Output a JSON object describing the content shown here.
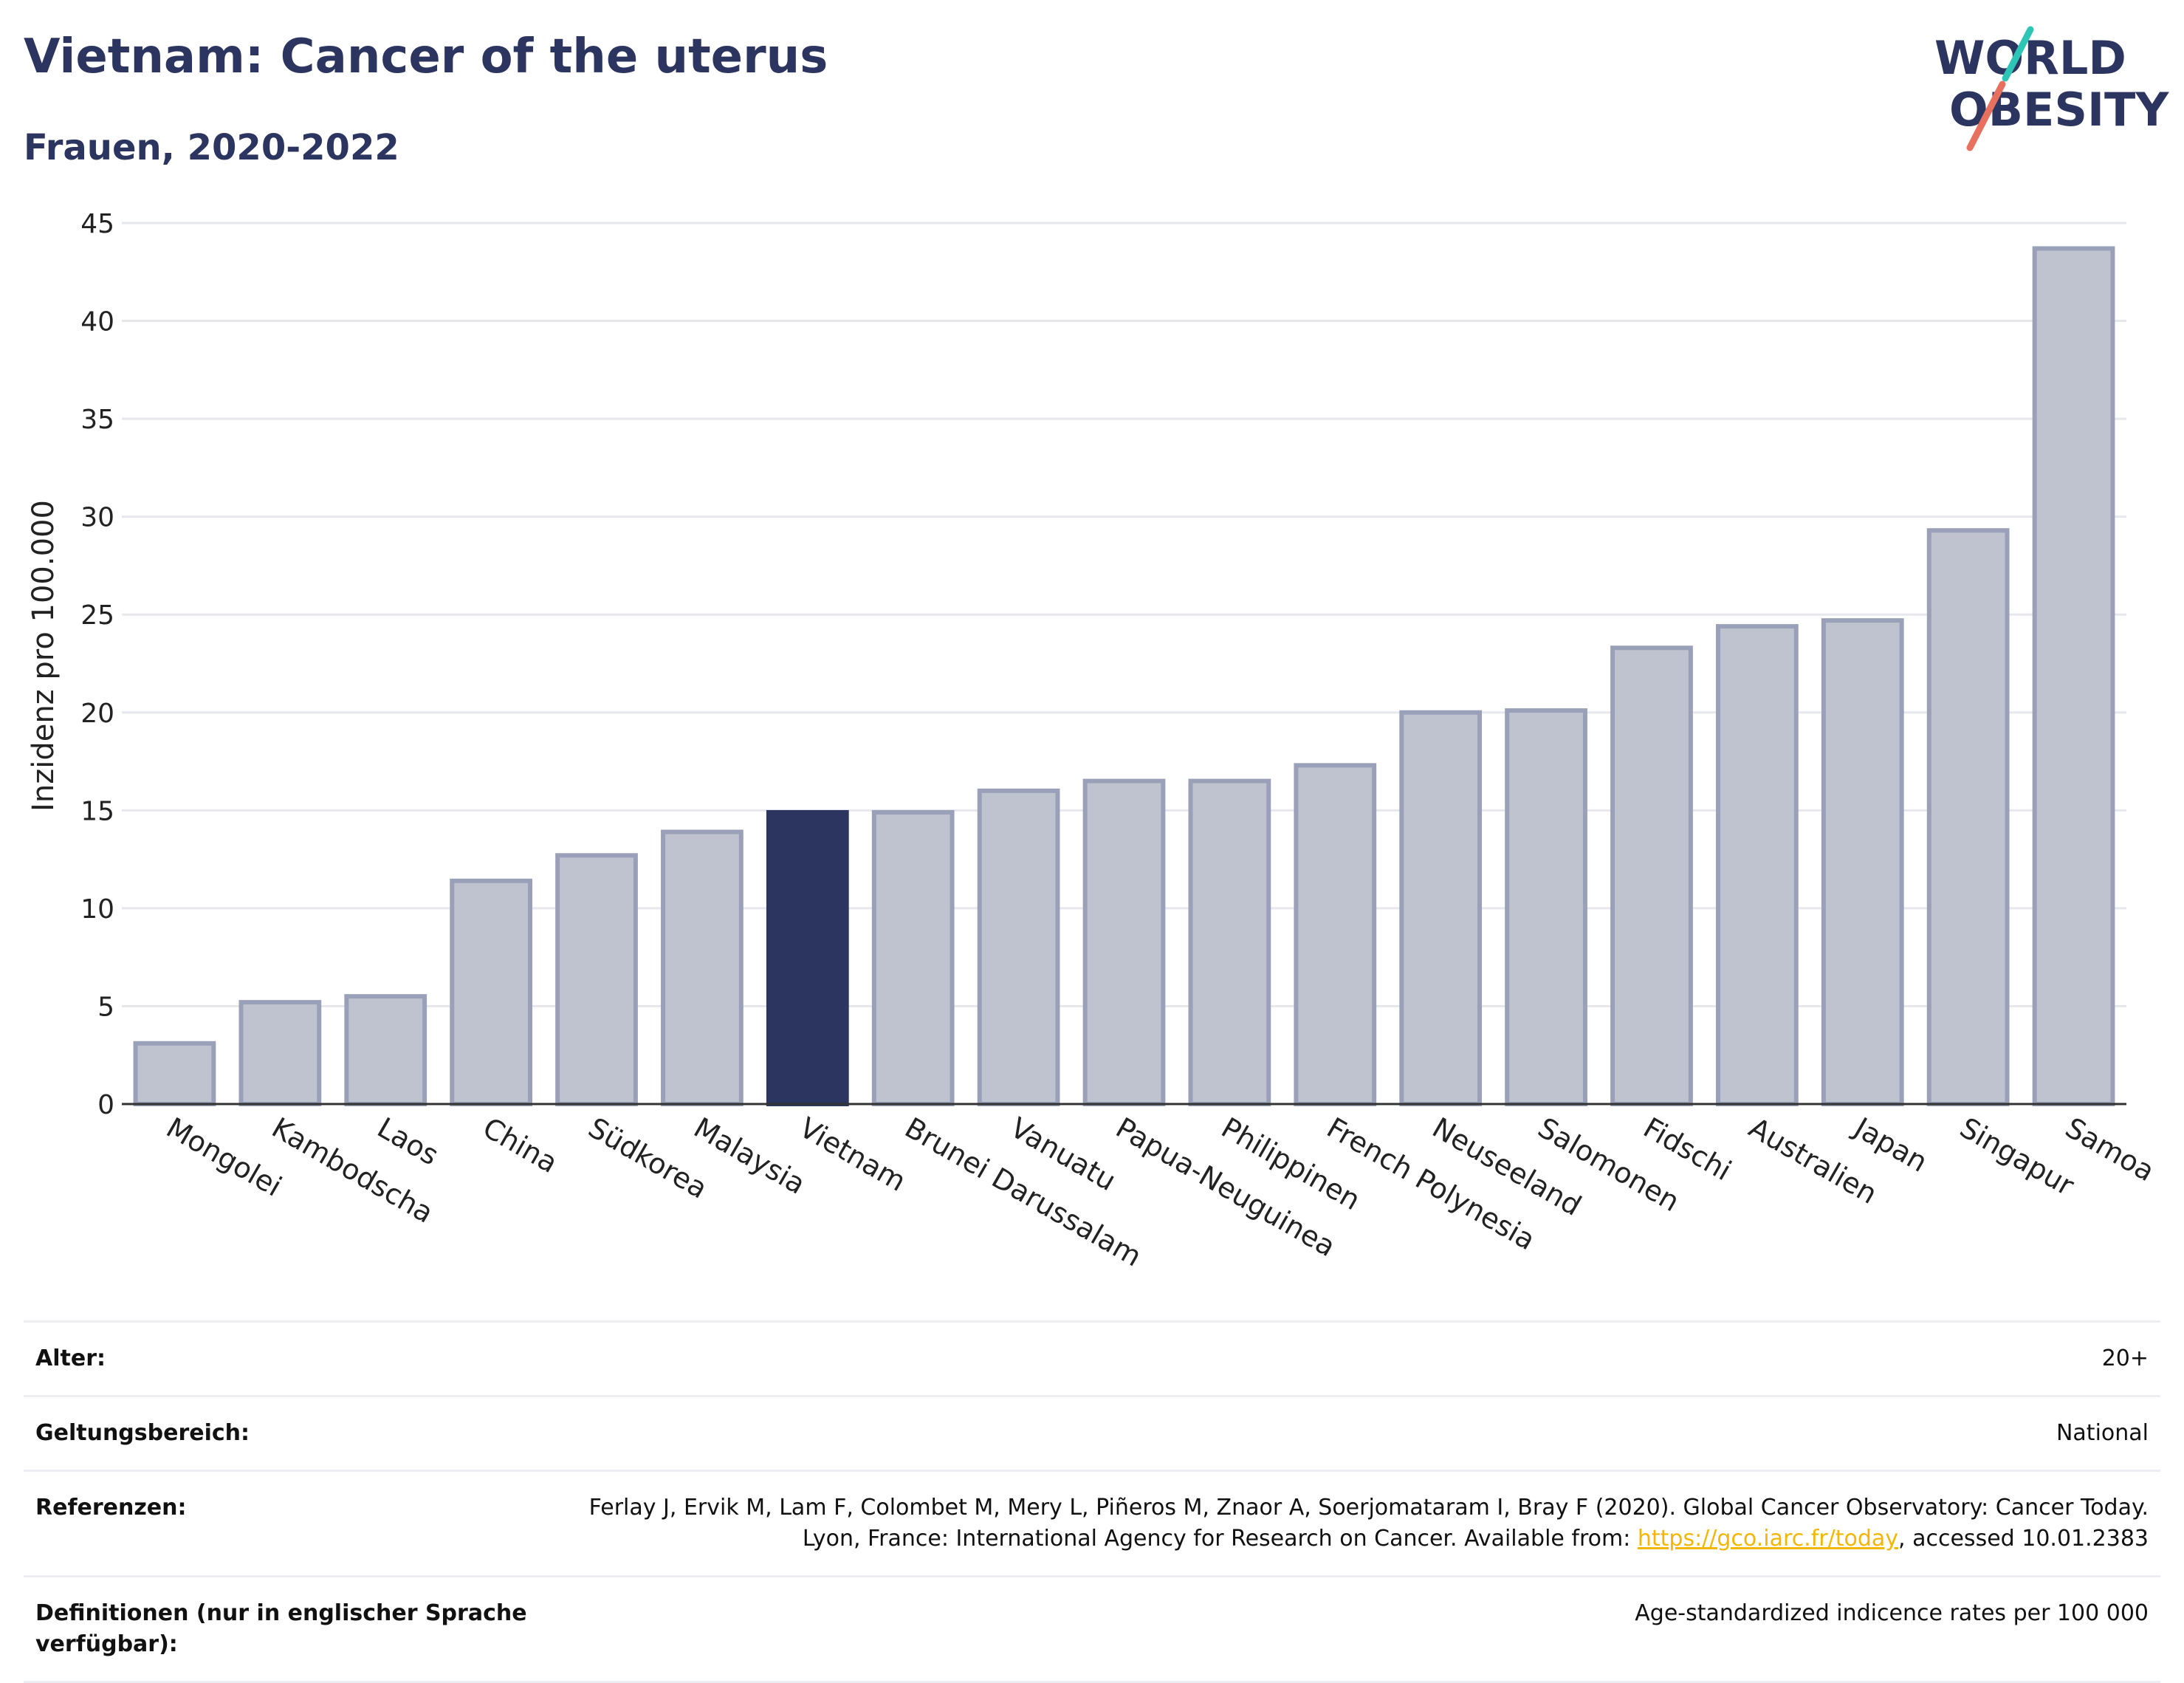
{
  "header": {
    "title": "Vietnam: Cancer of the uterus",
    "subtitle": "Frauen, 2020-2022"
  },
  "logo": {
    "line1": "WORLD",
    "line2": "OBESITY",
    "accent_teal": "#2ec4b6",
    "accent_coral": "#e8705f"
  },
  "colors": {
    "highlight": "#2b3560",
    "bar_fill": "#bfc3d0",
    "bar_stroke": "#9aa0b8",
    "grid": "#e6e8ee"
  },
  "chart_data": {
    "type": "bar",
    "ylabel": "Inzidenz pro 100.000",
    "ylim": [
      0,
      45
    ],
    "yticks": [
      0,
      5,
      10,
      15,
      20,
      25,
      30,
      35,
      40,
      45
    ],
    "grid": true,
    "highlight": "Vietnam",
    "categories": [
      "Mongolei",
      "Kambodscha",
      "Laos",
      "China",
      "Südkorea",
      "Malaysia",
      "Vietnam",
      "Brunei Darussalam",
      "Vanuatu",
      "Papua-Neuguinea",
      "Philippinen",
      "French Polynesia",
      "Neuseeland",
      "Salomonen",
      "Fidschi",
      "Australien",
      "Japan",
      "Singapur",
      "Samoa"
    ],
    "values": [
      3.1,
      5.2,
      5.5,
      11.4,
      12.7,
      13.9,
      14.9,
      14.9,
      16.0,
      16.5,
      16.5,
      17.3,
      20.0,
      20.1,
      23.3,
      24.4,
      24.7,
      29.3,
      43.7
    ]
  },
  "info": {
    "rows": [
      {
        "label": "Alter:",
        "value": "20+"
      },
      {
        "label": "Geltungsbereich:",
        "value": "National"
      },
      {
        "label": "Referenzen:",
        "value_before": "Ferlay J, Ervik M, Lam F, Colombet M, Mery L, Piñeros M, Znaor A, Soerjomataram I, Bray F (2020). Global Cancer Observatory: Cancer Today. Lyon, France: International Agency for Research on Cancer. Available from: ",
        "link": "https://gco.iarc.fr/today",
        "value_after": ", accessed 10.01.2383"
      },
      {
        "label": "Definitionen (nur in englischer Sprache verfügbar):",
        "value": "Age-standardized indicence rates per 100 000"
      }
    ]
  }
}
